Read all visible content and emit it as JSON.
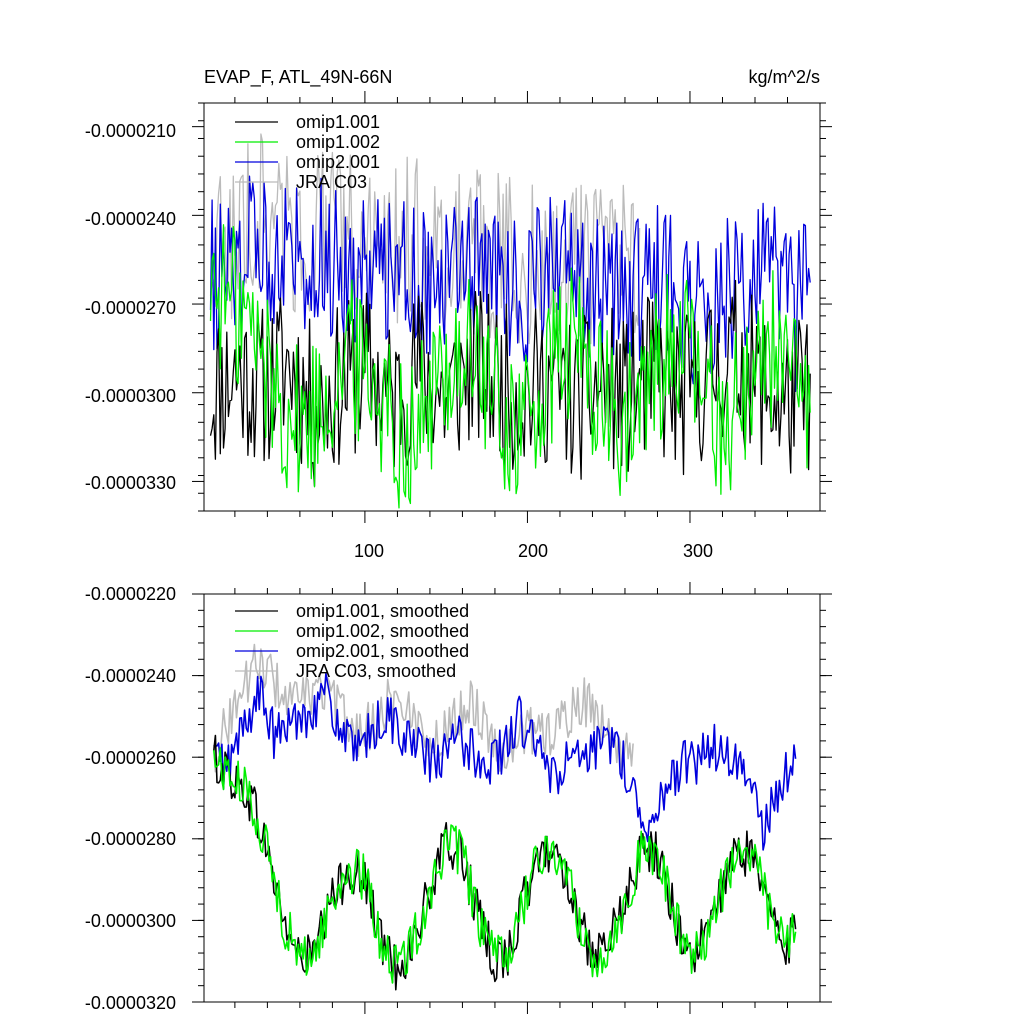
{
  "chart_data": [
    {
      "type": "line",
      "title": "EVAP_F, ATL_49N-66N",
      "units": "kg/m^2/s",
      "xlim": [
        1,
        380
      ],
      "ylim": [
        -3.4e-05,
        -2.02e-05
      ],
      "x_ticks": [
        100,
        200,
        300
      ],
      "x_tick_labels": [
        "100",
        "200",
        "300"
      ],
      "y_ticks": [
        -2.1e-05,
        -2.4e-05,
        -2.7e-05,
        -3e-05,
        -3.3e-05
      ],
      "y_tick_labels": [
        "-0.0000210",
        "-0.0000240",
        "-0.0000270",
        "-0.0000300",
        "-0.0000330"
      ],
      "legend_placement": "top-left",
      "series": [
        {
          "name": "omip1.001",
          "color": "#000000",
          "values": [
            -3e-05,
            -2.93e-05,
            -2.98e-05,
            -2.9e-05,
            -3.06e-05,
            -2.97e-05,
            -2.92e-05,
            -3.03e-05,
            -2.91e-05,
            -3.02e-05,
            -2.91e-05,
            -2.96e-05,
            -3.01e-05,
            -2.96e-05,
            -3.04e-05,
            -2.97e-05,
            -3.02e-05,
            -2.93e-05,
            -3.03e-05,
            -2.95e-05,
            -2.87e-05,
            -2.97e-05,
            -3.04e-05,
            -2.99e-05
          ]
        },
        {
          "name": "omip1.002",
          "color": "#00ee00",
          "values": [
            -2.62e-05,
            -2.68e-05,
            -2.72e-05,
            -2.83e-05,
            -2.96e-05,
            -3.07e-05,
            -3.12e-05,
            -3.05e-05,
            -2.95e-05,
            -2.87e-05,
            -2.9e-05,
            -2.98e-05,
            -3.1e-05,
            -3.14e-05,
            -3.07e-05,
            -2.95e-05,
            -2.87e-05,
            -2.88e-05,
            -2.98e-05,
            -3.09e-05,
            -3.12e-05,
            -3.07e-05,
            -2.96e-05,
            -2.86e-05,
            -2.85e-05,
            -2.96e-05,
            -3.1e-05,
            -3.11e-05,
            -3.06e-05,
            -2.91e-05,
            -2.83e-05,
            -2.87e-05,
            -2.98e-05,
            -3.09e-05,
            -3.05e-05,
            -2.96e-05,
            -2.86e-05,
            -2.82e-05,
            -3.02e-05,
            -3.08e-05
          ]
        },
        {
          "name": "omip2.001",
          "color": "#0000dd",
          "values": [
            -2.6e-05,
            -2.62e-05,
            -2.55e-05,
            -2.5e-05,
            -2.52e-05,
            -2.48e-05,
            -2.53e-05,
            -2.51e-05,
            -2.56e-05,
            -2.62e-05,
            -2.56e-05,
            -2.58e-05,
            -2.54e-05,
            -2.57e-05,
            -2.62e-05,
            -2.64e-05,
            -2.6e-05,
            -2.55e-05,
            -2.59e-05,
            -2.62e-05,
            -2.66e-05,
            -2.62e-05,
            -2.58e-05,
            -2.6e-05,
            -2.63e-05,
            -2.64e-05,
            -2.68e-05,
            -2.65e-05,
            -2.64e-05,
            -2.61e-05,
            -2.64e-05,
            -2.7e-05,
            -2.75e-05,
            -2.68e-05,
            -2.62e-05,
            -2.65e-05,
            -2.58e-05,
            -2.62e-05,
            -2.75e-05,
            -2.6e-05
          ]
        },
        {
          "name": "JRA C03",
          "color": "#bbbbbb",
          "values": [
            -2.55e-05,
            -2.48e-05,
            -2.45e-05,
            -2.37e-05,
            -2.43e-05,
            -2.48e-05,
            -2.44e-05,
            -2.46e-05,
            -2.45e-05,
            -2.5e-05,
            -2.55e-05,
            -2.49e-05,
            -2.47e-05,
            -2.5e-05,
            -2.52e-05,
            -2.49e-05,
            -2.55e-05,
            -2.53e-05,
            -2.58e-05,
            -2.56e-05,
            -2.54e-05,
            -2.56e-05,
            -2.58e-05,
            -2.55e-05,
            -2.56e-05,
            -2.57e-05
          ]
        }
      ]
    },
    {
      "type": "line",
      "title": "",
      "xlim": [
        1,
        380
      ],
      "ylim": [
        -3.2e-05,
        -2.2e-05
      ],
      "y_ticks": [
        -2.2e-05,
        -2.4e-05,
        -2.6e-05,
        -2.8e-05,
        -3e-05,
        -3.2e-05
      ],
      "y_tick_labels": [
        "-0.0000220",
        "-0.0000240",
        "-0.0000260",
        "-0.0000280",
        "-0.0000300",
        "-0.0000320"
      ],
      "legend_placement": "top-left",
      "series": [
        {
          "name": "omip1.001, smoothed",
          "color": "#000000",
          "x": [
            7,
            20,
            30,
            40,
            50,
            60,
            70,
            80,
            90,
            100,
            110,
            120,
            130,
            140,
            150,
            160,
            170,
            180,
            190,
            200,
            210,
            220,
            230,
            240,
            250,
            260,
            270,
            280,
            290,
            300,
            310,
            320,
            330,
            340,
            350,
            360,
            365
          ],
          "values": [
            -2.6e-05,
            -2.66e-05,
            -2.7e-05,
            -2.83e-05,
            -3e-05,
            -3.1e-05,
            -3.07e-05,
            -2.95e-05,
            -2.87e-05,
            -2.9e-05,
            -3.05e-05,
            -3.12e-05,
            -3.05e-05,
            -2.93e-05,
            -2.81e-05,
            -2.84e-05,
            -3e-05,
            -3.1e-05,
            -3.07e-05,
            -2.92e-05,
            -2.83e-05,
            -2.84e-05,
            -2.97e-05,
            -3.11e-05,
            -3.06e-05,
            -2.96e-05,
            -2.83e-05,
            -2.84e-05,
            -2.98e-05,
            -3.09e-05,
            -3.04e-05,
            -2.92e-05,
            -2.83e-05,
            -2.84e-05,
            -3e-05,
            -3.06e-05,
            -3.02e-05
          ]
        },
        {
          "name": "omip1.002, smoothed",
          "color": "#00ee00",
          "x": [
            7,
            20,
            30,
            40,
            50,
            60,
            70,
            80,
            90,
            100,
            110,
            120,
            130,
            140,
            150,
            160,
            170,
            180,
            190,
            200,
            210,
            220,
            230,
            240,
            250,
            260,
            270,
            280,
            290,
            300,
            310,
            320,
            330,
            340,
            350,
            360,
            365
          ],
          "values": [
            -2.6e-05,
            -2.66e-05,
            -2.7e-05,
            -2.83e-05,
            -3e-05,
            -3.1e-05,
            -3.07e-05,
            -2.95e-05,
            -2.87e-05,
            -2.9e-05,
            -3.05e-05,
            -3.12e-05,
            -3.05e-05,
            -2.93e-05,
            -2.81e-05,
            -2.84e-05,
            -3e-05,
            -3.1e-05,
            -3.07e-05,
            -2.92e-05,
            -2.83e-05,
            -2.84e-05,
            -2.97e-05,
            -3.11e-05,
            -3.06e-05,
            -2.96e-05,
            -2.83e-05,
            -2.84e-05,
            -2.98e-05,
            -3.09e-05,
            -3.04e-05,
            -2.92e-05,
            -2.83e-05,
            -2.84e-05,
            -3e-05,
            -3.06e-05,
            -3.02e-05
          ]
        },
        {
          "name": "omip2.001, smoothed",
          "color": "#0000dd",
          "x": [
            7,
            15,
            25,
            35,
            45,
            55,
            65,
            75,
            85,
            95,
            105,
            115,
            125,
            135,
            145,
            155,
            165,
            175,
            185,
            195,
            205,
            215,
            225,
            235,
            245,
            255,
            265,
            275,
            285,
            295,
            305,
            315,
            325,
            335,
            345,
            355,
            365
          ],
          "values": [
            -2.59e-05,
            -2.63e-05,
            -2.53e-05,
            -2.44e-05,
            -2.56e-05,
            -2.51e-05,
            -2.49e-05,
            -2.44e-05,
            -2.53e-05,
            -2.6e-05,
            -2.53e-05,
            -2.5e-05,
            -2.55e-05,
            -2.59e-05,
            -2.62e-05,
            -2.55e-05,
            -2.58e-05,
            -2.62e-05,
            -2.58e-05,
            -2.51e-05,
            -2.56e-05,
            -2.66e-05,
            -2.6e-05,
            -2.62e-05,
            -2.57e-05,
            -2.56e-05,
            -2.69e-05,
            -2.76e-05,
            -2.68e-05,
            -2.62e-05,
            -2.61e-05,
            -2.57e-05,
            -2.62e-05,
            -2.63e-05,
            -2.78e-05,
            -2.68e-05,
            -2.59e-05
          ]
        },
        {
          "name": "JRA C03, smoothed",
          "color": "#bbbbbb",
          "x": [
            7,
            15,
            25,
            35,
            45,
            55,
            65,
            75,
            85,
            95,
            105,
            115,
            125,
            135,
            145,
            155,
            165,
            175,
            185,
            195,
            205,
            215,
            225,
            235,
            245,
            255,
            265
          ],
          "values": [
            -2.59e-05,
            -2.52e-05,
            -2.43e-05,
            -2.36e-05,
            -2.42e-05,
            -2.47e-05,
            -2.45e-05,
            -2.43e-05,
            -2.49e-05,
            -2.54e-05,
            -2.52e-05,
            -2.46e-05,
            -2.48e-05,
            -2.53e-05,
            -2.57e-05,
            -2.5e-05,
            -2.46e-05,
            -2.53e-05,
            -2.59e-05,
            -2.55e-05,
            -2.53e-05,
            -2.54e-05,
            -2.5e-05,
            -2.46e-05,
            -2.52e-05,
            -2.58e-05,
            -2.57e-05
          ]
        }
      ]
    }
  ]
}
